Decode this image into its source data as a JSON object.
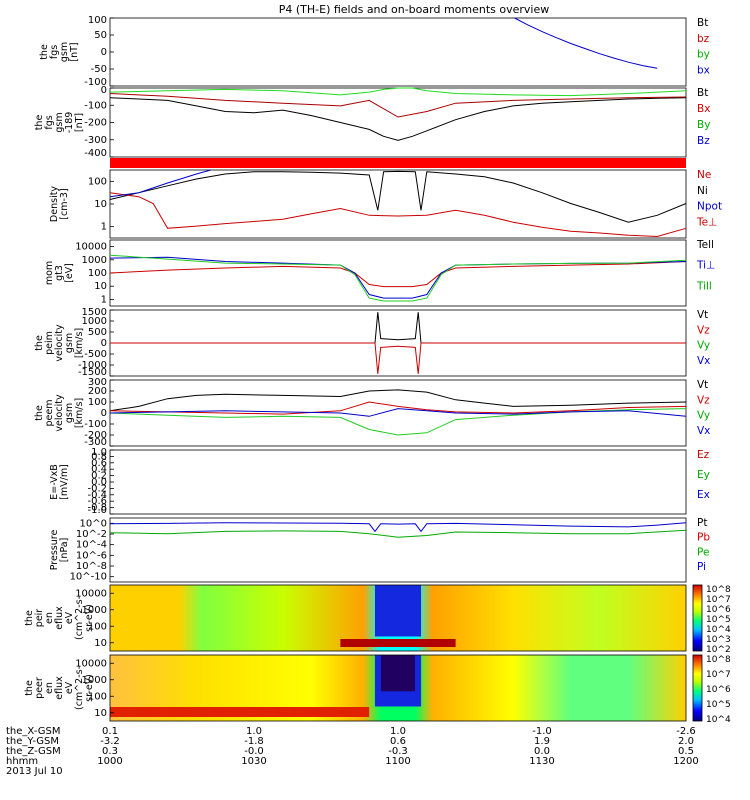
{
  "title": "P4 (TH-E) fields and on-board moments overview",
  "chart_data": [
    {
      "type": "line",
      "panel": "fgs",
      "ylabel_lines": [
        "the",
        "fgs",
        "gsm",
        "[nT]"
      ],
      "ylim": [
        -100,
        100
      ],
      "yticks": [
        "100",
        "50",
        "0",
        "-50",
        "-100"
      ],
      "legend": [
        {
          "label": "Bt",
          "color": "#000000"
        },
        {
          "label": "bz",
          "color": "#cc0000"
        },
        {
          "label": "by",
          "color": "#00aa00"
        },
        {
          "label": "bx",
          "color": "#0000cc"
        }
      ],
      "series": [
        {
          "name": "bx",
          "color": "#0000cc",
          "x": [
            1140.5,
            1145,
            1150,
            1155,
            1160,
            1165,
            1170,
            1175,
            1180,
            1185,
            1190
          ],
          "y": [
            100,
            80,
            60,
            42,
            25,
            10,
            -5,
            -18,
            -30,
            -40,
            -48
          ]
        }
      ]
    },
    {
      "type": "line",
      "panel": "fgs-89",
      "ylabel_lines": [
        "the",
        "fgs",
        "gsm",
        "-189",
        "[nT]"
      ],
      "ylim": [
        -450,
        50
      ],
      "yticks": [
        "0",
        "-100",
        "-200",
        "-300",
        "-400"
      ],
      "legend": [
        {
          "label": "Bt",
          "color": "#000000"
        },
        {
          "label": "Bx",
          "color": "#cc0000"
        },
        {
          "label": "By",
          "color": "#00aa00"
        },
        {
          "label": "Bz",
          "color": "#0000cc"
        }
      ],
      "series": [
        {
          "name": "Bt",
          "color": "#000000",
          "x": [
            1000,
            1010,
            1020,
            1030,
            1040,
            1050,
            1060,
            1070,
            1080,
            1090,
            1095,
            1100,
            1105,
            1110,
            1120,
            1130,
            1140,
            1150,
            1160,
            1170,
            1180,
            1190,
            1200
          ],
          "y": [
            -20,
            -30,
            -40,
            -80,
            -120,
            -130,
            -110,
            -150,
            -200,
            -250,
            -300,
            -330,
            -300,
            -260,
            -180,
            -120,
            -80,
            -60,
            -50,
            -40,
            -30,
            -25,
            -20
          ]
        },
        {
          "name": "Bx",
          "color": "#aa0000",
          "x": [
            1000,
            1020,
            1040,
            1060,
            1080,
            1090,
            1100,
            1110,
            1120,
            1140,
            1160,
            1180,
            1200
          ],
          "y": [
            10,
            -10,
            -40,
            -60,
            -80,
            -40,
            -160,
            -120,
            -60,
            -40,
            -30,
            -20,
            -15
          ]
        },
        {
          "name": "By",
          "color": "#22dd22",
          "x": [
            1000,
            1020,
            1040,
            1060,
            1080,
            1090,
            1095,
            1100,
            1105,
            1110,
            1120,
            1140,
            1160,
            1180,
            1200
          ],
          "y": [
            20,
            30,
            40,
            30,
            0,
            20,
            40,
            80,
            60,
            30,
            10,
            0,
            -5,
            10,
            30
          ]
        }
      ]
    },
    {
      "type": "bar",
      "panel": "flag-bar",
      "color": "#ff0000"
    },
    {
      "type": "line",
      "panel": "density",
      "scale": "log",
      "ylabel_lines": [
        "Density",
        "[cm-3]"
      ],
      "ylim": [
        0.3,
        300
      ],
      "yticks": [
        "100",
        "10",
        "1"
      ],
      "legend": [
        {
          "label": "Ne",
          "color": "#cc0000"
        },
        {
          "label": "Ni",
          "color": "#000000"
        },
        {
          "label": "Npot",
          "color": "#0000cc"
        },
        {
          "label": "Te⊥",
          "color": "#cc0000"
        }
      ],
      "series": [
        {
          "name": "Ni",
          "color": "#000000",
          "x": [
            1000,
            1010,
            1020,
            1030,
            1040,
            1050,
            1060,
            1070,
            1080,
            1090,
            1093,
            1095,
            1100,
            1106,
            1108,
            1110,
            1120,
            1130,
            1140,
            1150,
            1160,
            1170,
            1180,
            1190,
            1200
          ],
          "y": [
            15,
            30,
            60,
            120,
            200,
            250,
            250,
            240,
            220,
            180,
            5,
            250,
            260,
            250,
            5,
            250,
            200,
            150,
            80,
            30,
            10,
            4,
            1.5,
            3,
            10
          ]
        },
        {
          "name": "Ne",
          "color": "#cc0000",
          "x": [
            1000,
            1010,
            1015,
            1020,
            1030,
            1040,
            1050,
            1060,
            1070,
            1080,
            1090,
            1100,
            1110,
            1120,
            1130,
            1140,
            1150,
            1160,
            1170,
            1180,
            1190,
            1200
          ],
          "y": [
            30,
            20,
            10,
            0.8,
            1.0,
            1.3,
            1.6,
            2.0,
            3.5,
            6,
            3,
            2.8,
            3,
            5,
            3,
            1.5,
            0.9,
            0.6,
            0.5,
            0.4,
            0.35,
            0.8
          ]
        },
        {
          "name": "Npot",
          "color": "#0000cc",
          "x": [
            1000,
            1010,
            1020,
            1030,
            1035
          ],
          "y": [
            20,
            30,
            80,
            200,
            300
          ]
        }
      ]
    },
    {
      "type": "line",
      "panel": "mom-gt3",
      "scale": "log",
      "ylabel_lines": [
        "mom",
        "gt3",
        "[eV]"
      ],
      "ylim": [
        1,
        10000
      ],
      "yticks": [
        "10000",
        "1000",
        "100",
        "10",
        "1"
      ],
      "legend": [
        {
          "label": "Tell",
          "color": "#000000"
        },
        {
          "label": "Ti⊥",
          "color": "#0000cc"
        },
        {
          "label": "Till",
          "color": "#00aa00"
        }
      ],
      "series": [
        {
          "name": "Te",
          "color": "#cc0000",
          "x": [
            1000,
            1020,
            1040,
            1060,
            1080,
            1085,
            1090,
            1095,
            1100,
            1105,
            1110,
            1115,
            1120,
            1140,
            1160,
            1180,
            1200
          ],
          "y": [
            100,
            150,
            200,
            250,
            200,
            100,
            20,
            15,
            15,
            15,
            20,
            100,
            200,
            250,
            300,
            350,
            500
          ]
        },
        {
          "name": "Ti",
          "color": "#0000cc",
          "x": [
            1000,
            1020,
            1040,
            1060,
            1080,
            1085,
            1090,
            1095,
            1100,
            1105,
            1110,
            1115,
            1120,
            1140,
            1160,
            1180,
            1200
          ],
          "y": [
            800,
            900,
            500,
            400,
            300,
            100,
            5,
            3,
            3,
            3,
            5,
            100,
            300,
            350,
            380,
            400,
            500
          ]
        },
        {
          "name": "Till",
          "color": "#22cc22",
          "x": [
            1000,
            1020,
            1040,
            1060,
            1080,
            1085,
            1090,
            1095,
            1100,
            1105,
            1110,
            1115,
            1120,
            1140,
            1160,
            1180,
            1200
          ],
          "y": [
            1200,
            700,
            400,
            350,
            300,
            80,
            3,
            2,
            2,
            2,
            3,
            80,
            300,
            350,
            380,
            400,
            600
          ]
        }
      ]
    },
    {
      "type": "line",
      "panel": "peim-velocity",
      "ylabel_lines": [
        "the",
        "peim",
        "velocity",
        "gsm",
        "[km/s]"
      ],
      "ylim": [
        -1500,
        1500
      ],
      "yticks": [
        "1500",
        "1000",
        "500",
        "0",
        "-500",
        "-1000",
        "-1500"
      ],
      "legend": [
        {
          "label": "Vt",
          "color": "#000000"
        },
        {
          "label": "Vz",
          "color": "#cc0000"
        },
        {
          "label": "Vy",
          "color": "#00aa00"
        },
        {
          "label": "Vx",
          "color": "#0000cc"
        }
      ],
      "series": [
        {
          "name": "Vt",
          "color": "#000000",
          "x": [
            1000,
            1092,
            1093,
            1094,
            1100,
            1106,
            1107,
            1108,
            1200
          ],
          "y": [
            0,
            0,
            1400,
            200,
            150,
            200,
            1400,
            0,
            0
          ]
        },
        {
          "name": "Vz",
          "color": "#cc0000",
          "x": [
            1000,
            1092,
            1093,
            1094,
            1100,
            1106,
            1107,
            1108,
            1200
          ],
          "y": [
            0,
            0,
            -1400,
            -200,
            -150,
            -200,
            -1400,
            0,
            0
          ]
        }
      ]
    },
    {
      "type": "line",
      "panel": "peem-velocity",
      "ylabel_lines": [
        "the",
        "peem",
        "velocity",
        "gsm",
        "[km/s]"
      ],
      "ylim": [
        -300,
        300
      ],
      "yticks": [
        "300",
        "200",
        "100",
        "0",
        "-100",
        "-200",
        "-300"
      ],
      "legend": [
        {
          "label": "Vt",
          "color": "#000000"
        },
        {
          "label": "Vz",
          "color": "#cc0000"
        },
        {
          "label": "Vy",
          "color": "#00aa00"
        },
        {
          "label": "Vx",
          "color": "#0000cc"
        }
      ],
      "series": [
        {
          "name": "Vt",
          "color": "#000000",
          "x": [
            1000,
            1010,
            1020,
            1030,
            1040,
            1060,
            1080,
            1090,
            1100,
            1110,
            1120,
            1130,
            1140,
            1160,
            1180,
            1200
          ],
          "y": [
            20,
            60,
            130,
            160,
            170,
            160,
            150,
            200,
            210,
            190,
            120,
            90,
            60,
            70,
            90,
            100
          ]
        },
        {
          "name": "Vz",
          "color": "#cc0000",
          "x": [
            1000,
            1020,
            1040,
            1060,
            1080,
            1090,
            1100,
            1110,
            1120,
            1140,
            1160,
            1180,
            1200
          ],
          "y": [
            20,
            10,
            0,
            -10,
            20,
            100,
            60,
            30,
            10,
            0,
            20,
            50,
            60
          ]
        },
        {
          "name": "Vy",
          "color": "#22cc22",
          "x": [
            1000,
            1020,
            1040,
            1060,
            1080,
            1090,
            1100,
            1110,
            1120,
            1140,
            1160,
            1180,
            1200
          ],
          "y": [
            0,
            -20,
            -40,
            -30,
            -40,
            -150,
            -200,
            -180,
            -60,
            -20,
            10,
            30,
            40
          ]
        },
        {
          "name": "Vx",
          "color": "#0000cc",
          "x": [
            1000,
            1020,
            1040,
            1060,
            1080,
            1090,
            1100,
            1110,
            1120,
            1140,
            1160,
            1180,
            1200
          ],
          "y": [
            0,
            10,
            20,
            10,
            0,
            -30,
            40,
            20,
            0,
            -10,
            10,
            20,
            -30
          ]
        }
      ]
    },
    {
      "type": "line",
      "panel": "e-field",
      "ylabel_lines": [
        "E=-VxB",
        "[mV/m]"
      ],
      "ylim": [
        -1.0,
        1.0
      ],
      "yticks": [
        "1.0",
        "0.8",
        "0.6",
        "0.4",
        "0.2",
        "0.0",
        "-0.2",
        "-0.4",
        "-0.6",
        "-0.8",
        "-1.0"
      ],
      "legend": [
        {
          "label": "Ez",
          "color": "#cc0000"
        },
        {
          "label": "Ey",
          "color": "#00aa00"
        },
        {
          "label": "Ex",
          "color": "#0000cc"
        }
      ],
      "series": []
    },
    {
      "type": "line",
      "panel": "pressure",
      "scale": "log",
      "ylabel_lines": [
        "Pressure",
        "[nPa]"
      ],
      "ylim": [
        1e-10,
        10
      ],
      "yticks": [
        "10^0",
        "10^-2",
        "10^-4",
        "10^-6",
        "10^-8",
        "10^-10"
      ],
      "legend": [
        {
          "label": "Pt",
          "color": "#000000"
        },
        {
          "label": "Pb",
          "color": "#cc0000"
        },
        {
          "label": "Pe",
          "color": "#00aa00"
        },
        {
          "label": "Pi",
          "color": "#0000cc"
        }
      ],
      "series": [
        {
          "name": "Pi",
          "color": "#0000cc",
          "x": [
            1000,
            1020,
            1040,
            1060,
            1080,
            1090,
            1092,
            1094,
            1100,
            1106,
            1108,
            1110,
            1120,
            1140,
            1160,
            1180,
            1190,
            1200
          ],
          "y": [
            1.0,
            1.2,
            1.5,
            1.4,
            1.3,
            1.0,
            0.05,
            1.0,
            0.9,
            1.0,
            0.05,
            1.0,
            1.2,
            0.7,
            0.4,
            0.3,
            0.6,
            1.5
          ]
        },
        {
          "name": "Pe",
          "color": "#00aa00",
          "x": [
            1000,
            1020,
            1040,
            1060,
            1080,
            1090,
            1100,
            1110,
            1120,
            1140,
            1160,
            1180,
            1200
          ],
          "y": [
            0.03,
            0.02,
            0.05,
            0.06,
            0.05,
            0.02,
            0.005,
            0.01,
            0.04,
            0.03,
            0.02,
            0.02,
            0.08
          ]
        }
      ]
    },
    {
      "type": "heatmap",
      "panel": "peir-en-eflux",
      "scale": "log",
      "ylabel_lines": [
        "the",
        "peir",
        "en",
        "eflux",
        "eV",
        "(cm^2-s-",
        "sr-eV)"
      ],
      "ylim": [
        5,
        30000
      ],
      "yticks": [
        "10000",
        "1000",
        "100",
        "10"
      ],
      "colorbar": {
        "ticks": [
          "10^8",
          "10^7",
          "10^6",
          "10^5",
          "10^4",
          "10^3",
          "10^2"
        ]
      }
    },
    {
      "type": "heatmap",
      "panel": "peer-en-eflux",
      "scale": "log",
      "ylabel_lines": [
        "the",
        "peer",
        "en",
        "eflux",
        "eV",
        "(cm^2-s-",
        "sr-eV)"
      ],
      "ylim": [
        5,
        30000
      ],
      "yticks": [
        "10000",
        "1000",
        "100",
        "10"
      ],
      "colorbar": {
        "ticks": [
          "10^8",
          "10^7",
          "10^6",
          "10^5",
          "10^4"
        ]
      }
    }
  ],
  "xaxis": {
    "range": [
      1000,
      1200
    ],
    "rows": [
      {
        "label": "the_X-GSM",
        "values": [
          "0.1",
          "1.0",
          "1.0",
          "-1.0",
          "-2.6"
        ]
      },
      {
        "label": "the_Y-GSM",
        "values": [
          "-3.2",
          "-1.8",
          "0.6",
          "1.9",
          "2.0"
        ]
      },
      {
        "label": "the_Z-GSM",
        "values": [
          "0.3",
          "-0.0",
          "-0.3",
          "0.0",
          "0.5"
        ]
      },
      {
        "label": "hhmm",
        "values": [
          "1000",
          "1030",
          "1100",
          "1130",
          "1200"
        ]
      }
    ],
    "date": "2013 Jul 10"
  }
}
